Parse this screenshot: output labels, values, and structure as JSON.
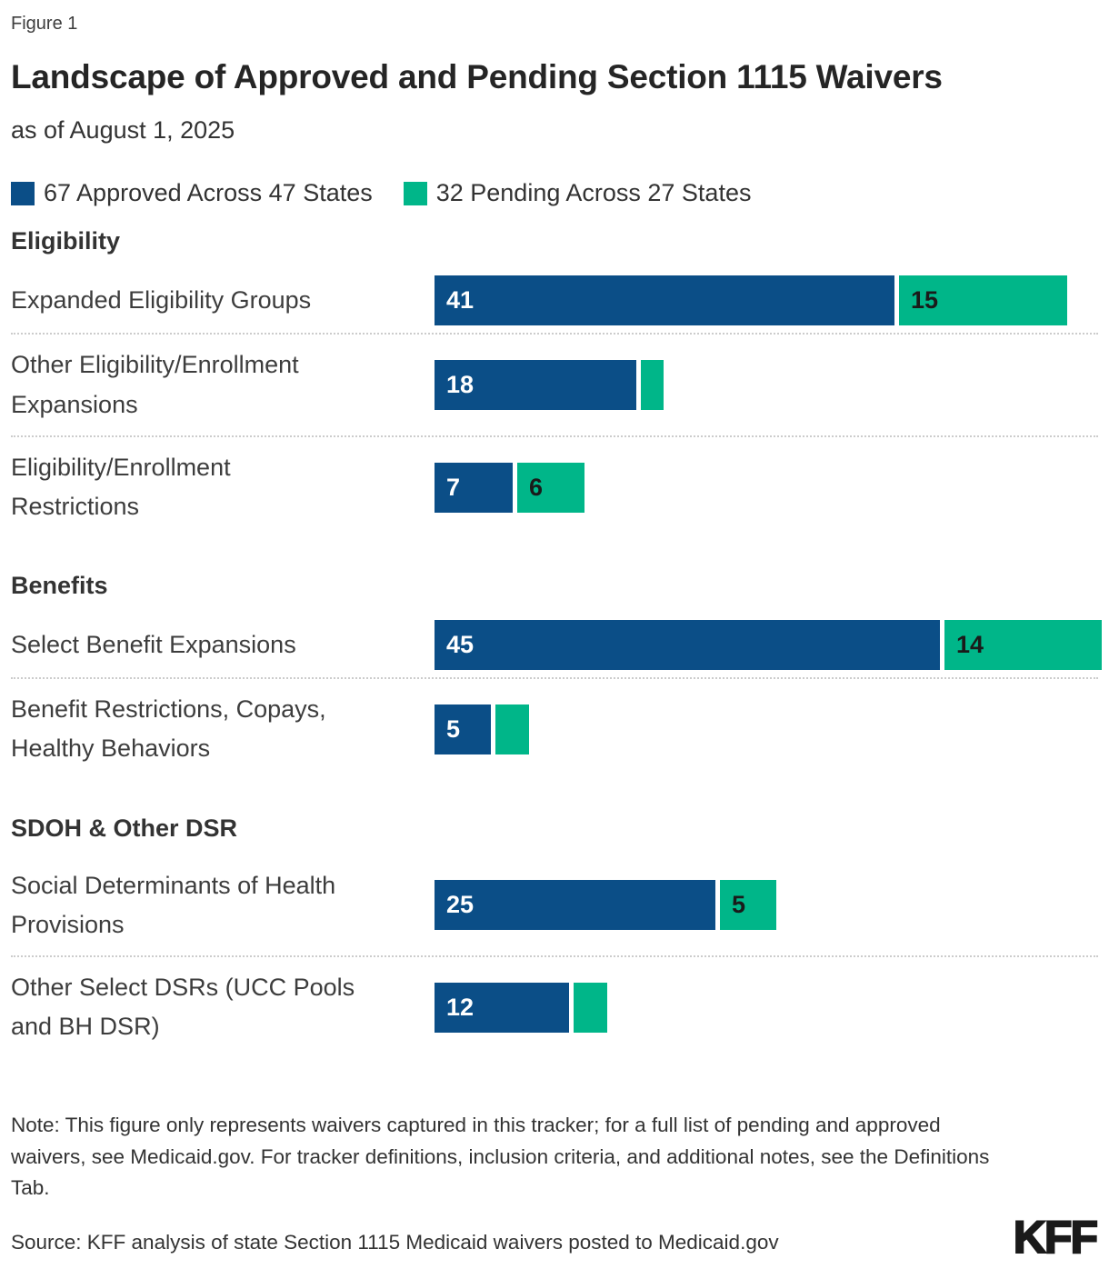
{
  "figure_label": "Figure 1",
  "title": "Landscape of Approved and Pending Section 1115 Waivers",
  "subtitle": "as of August 1, 2025",
  "legend": [
    {
      "label": "67 Approved Across 47 States",
      "color": "#0B4E87"
    },
    {
      "label": "32 Pending Across 27 States",
      "color": "#00B689"
    }
  ],
  "chart_data": {
    "type": "bar",
    "orientation": "horizontal",
    "stacked": true,
    "series": [
      {
        "name": "Approved",
        "total": 67,
        "states": 47,
        "color": "#0B4E87"
      },
      {
        "name": "Pending",
        "total": 32,
        "states": 27,
        "color": "#00B689"
      }
    ],
    "value_range": [
      0,
      59
    ],
    "grid": false,
    "legend_position": "top",
    "groups": [
      {
        "header": "Eligibility",
        "rows": [
          {
            "label": "Expanded Eligibility Groups",
            "label_lines": [
              "Expanded Eligibility Groups"
            ],
            "approved": 41,
            "pending": 15
          },
          {
            "label": "Other Eligibility/Enrollment Expansions",
            "label_lines": [
              "Other Eligibility/Enrollment",
              "Expansions"
            ],
            "approved": 18,
            "pending": 2
          },
          {
            "label": "Eligibility/Enrollment Restrictions",
            "label_lines": [
              "Eligibility/Enrollment",
              "Restrictions"
            ],
            "approved": 7,
            "pending": 6
          }
        ]
      },
      {
        "header": "Benefits",
        "rows": [
          {
            "label": "Select Benefit Expansions",
            "label_lines": [
              "Select Benefit Expansions"
            ],
            "approved": 45,
            "pending": 14
          },
          {
            "label": "Benefit Restrictions, Copays, Healthy Behaviors",
            "label_lines": [
              "Benefit Restrictions, Copays,",
              "Healthy Behaviors"
            ],
            "approved": 5,
            "pending": 3
          }
        ]
      },
      {
        "header": "SDOH & Other DSR",
        "rows": [
          {
            "label": "Social Determinants of Health Provisions",
            "label_lines": [
              "Social Determinants of Health",
              "Provisions"
            ],
            "approved": 25,
            "pending": 5
          },
          {
            "label": "Other Select DSRs (UCC Pools and BH DSR)",
            "label_lines": [
              "Other Select DSRs (UCC Pools",
              "and BH DSR)"
            ],
            "approved": 12,
            "pending": 3
          }
        ]
      }
    ]
  },
  "note": "Note: This figure only represents waivers captured in this tracker; for a full list of pending and approved waivers, see Medicaid.gov. For tracker definitions, inclusion criteria, and additional notes, see the Definitions Tab.",
  "source": "Source: KFF analysis of state Section 1115 Medicaid waivers posted to Medicaid.gov",
  "logo_text": "KFF"
}
